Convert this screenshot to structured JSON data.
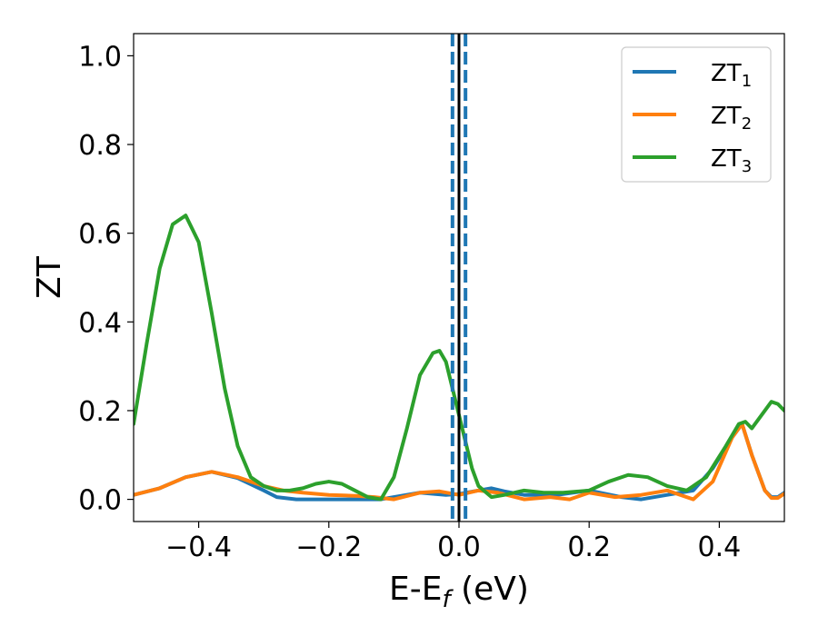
{
  "chart_data": {
    "type": "line",
    "xlabel": {
      "main": "E-E",
      "sub": "f",
      "tail": " (eV)"
    },
    "ylabel": "ZT",
    "xlim": [
      -0.5,
      0.5
    ],
    "ylim": [
      -0.05,
      1.05
    ],
    "xticks": [
      -0.4,
      -0.2,
      0.0,
      0.2,
      0.4
    ],
    "xtick_labels": [
      "−0.4",
      "−0.2",
      "0.0",
      "0.2",
      "0.4"
    ],
    "yticks": [
      0.0,
      0.2,
      0.4,
      0.6,
      0.8,
      1.0
    ],
    "ytick_labels": [
      "0.0",
      "0.2",
      "0.4",
      "0.6",
      "0.8",
      "1.0"
    ],
    "grid": false,
    "legend_position": "top-right",
    "vlines": [
      {
        "x": 0.0,
        "style": "solid",
        "color": "#000000"
      },
      {
        "x": -0.01,
        "style": "dashed",
        "color": "#1f77b4"
      },
      {
        "x": 0.01,
        "style": "dashed",
        "color": "#1f77b4"
      }
    ],
    "series": [
      {
        "name": "ZT",
        "name_sub": "1",
        "color": "#1f77b4",
        "x": [
          -0.5,
          -0.46,
          -0.42,
          -0.38,
          -0.34,
          -0.3,
          -0.28,
          -0.25,
          -0.2,
          -0.15,
          -0.12,
          -0.1,
          -0.06,
          -0.02,
          0.0,
          0.03,
          0.05,
          0.07,
          0.1,
          0.15,
          0.2,
          0.25,
          0.28,
          0.32,
          0.34,
          0.36,
          0.39,
          0.42,
          0.435,
          0.45,
          0.47,
          0.48,
          0.49,
          0.5
        ],
        "y": [
          0.01,
          0.025,
          0.05,
          0.062,
          0.048,
          0.02,
          0.005,
          0.0,
          0.0,
          0.0,
          0.0,
          0.005,
          0.015,
          0.01,
          0.012,
          0.02,
          0.025,
          0.018,
          0.01,
          0.01,
          0.02,
          0.005,
          0.0,
          0.01,
          0.015,
          0.02,
          0.07,
          0.14,
          0.17,
          0.1,
          0.02,
          0.005,
          0.005,
          0.015
        ]
      },
      {
        "name": "ZT",
        "name_sub": "2",
        "color": "#ff7f0e",
        "x": [
          -0.5,
          -0.46,
          -0.42,
          -0.38,
          -0.34,
          -0.3,
          -0.27,
          -0.24,
          -0.2,
          -0.16,
          -0.13,
          -0.1,
          -0.06,
          -0.03,
          0.0,
          0.03,
          0.06,
          0.1,
          0.14,
          0.17,
          0.2,
          0.24,
          0.28,
          0.32,
          0.34,
          0.36,
          0.39,
          0.42,
          0.435,
          0.45,
          0.47,
          0.48,
          0.49,
          0.5
        ],
        "y": [
          0.01,
          0.025,
          0.05,
          0.062,
          0.05,
          0.03,
          0.02,
          0.015,
          0.01,
          0.008,
          0.005,
          0.0,
          0.015,
          0.018,
          0.01,
          0.02,
          0.015,
          0.0,
          0.005,
          0.0,
          0.015,
          0.005,
          0.01,
          0.02,
          0.01,
          0.0,
          0.04,
          0.14,
          0.17,
          0.1,
          0.02,
          0.003,
          0.003,
          0.013
        ]
      },
      {
        "name": "ZT",
        "name_sub": "3",
        "color": "#2ca02c",
        "x": [
          -0.5,
          -0.48,
          -0.46,
          -0.44,
          -0.42,
          -0.4,
          -0.38,
          -0.36,
          -0.34,
          -0.32,
          -0.3,
          -0.28,
          -0.26,
          -0.24,
          -0.22,
          -0.2,
          -0.18,
          -0.16,
          -0.14,
          -0.12,
          -0.1,
          -0.08,
          -0.06,
          -0.04,
          -0.03,
          -0.02,
          -0.01,
          0.0,
          0.01,
          0.02,
          0.03,
          0.05,
          0.07,
          0.1,
          0.13,
          0.16,
          0.2,
          0.23,
          0.26,
          0.29,
          0.32,
          0.35,
          0.38,
          0.41,
          0.43,
          0.44,
          0.45,
          0.47,
          0.48,
          0.49,
          0.5
        ],
        "y": [
          0.17,
          0.35,
          0.52,
          0.62,
          0.64,
          0.58,
          0.42,
          0.25,
          0.12,
          0.05,
          0.03,
          0.02,
          0.02,
          0.025,
          0.035,
          0.04,
          0.035,
          0.02,
          0.005,
          0.0,
          0.05,
          0.16,
          0.28,
          0.33,
          0.335,
          0.31,
          0.25,
          0.19,
          0.13,
          0.07,
          0.03,
          0.005,
          0.01,
          0.02,
          0.015,
          0.015,
          0.02,
          0.04,
          0.055,
          0.05,
          0.03,
          0.02,
          0.05,
          0.12,
          0.17,
          0.175,
          0.16,
          0.2,
          0.22,
          0.215,
          0.2
        ]
      }
    ]
  }
}
